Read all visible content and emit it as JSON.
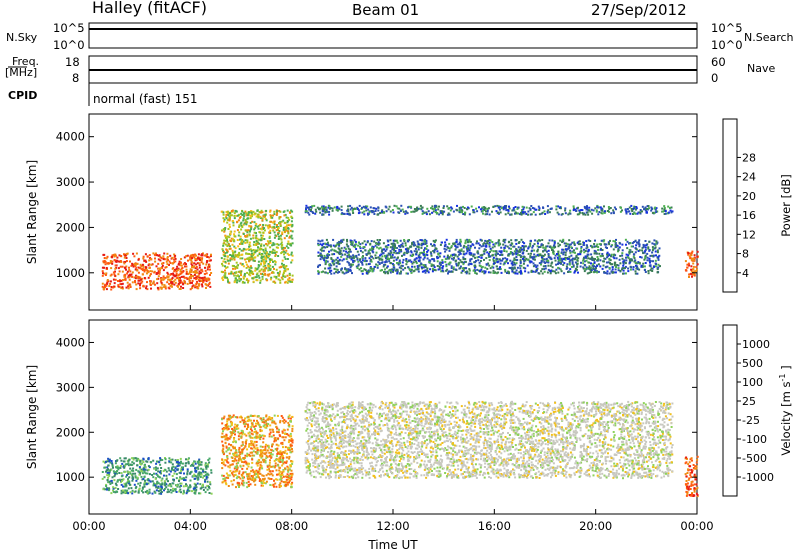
{
  "header": {
    "station": "Halley (fitACF)",
    "beam": "Beam 01",
    "date": "27/Sep/2012"
  },
  "top_panels": {
    "nsky_label": "N.Sky",
    "nsky_ticks": [
      "10^5",
      "10^0"
    ],
    "nsearch_label": "N.Search",
    "nsearch_ticks": [
      "10^5",
      "10^0"
    ],
    "freq_label": "Freq.",
    "freq_unit": "[MHz]",
    "freq_ticks": [
      "18",
      "8"
    ],
    "nave_label": "Nave",
    "nave_ticks": [
      "60",
      "0"
    ],
    "cpid_label": "CPID",
    "cpid_value": "normal (fast) 151"
  },
  "chart_data": [
    {
      "type": "heatmap",
      "title": "",
      "xlabel": "",
      "ylabel": "Slant Range [km]",
      "x_ticks": [
        "00:00",
        "04:00",
        "08:00",
        "12:00",
        "16:00",
        "20:00",
        "00:00"
      ],
      "xlim_hours": [
        0,
        24
      ],
      "y_ticks": [
        1000,
        2000,
        3000,
        4000
      ],
      "ylim_km": [
        180,
        4500
      ],
      "colorbar": {
        "label": "Power [dB]",
        "ticks": [
          4,
          8,
          12,
          16,
          20,
          24,
          28
        ],
        "colors": [
          "#1530e0",
          "#2a50b4",
          "#3a7d55",
          "#4caf50",
          "#a5c51e",
          "#f2c01b",
          "#f08c12",
          "#ff5a10",
          "#e61a14"
        ]
      },
      "echo_regions": [
        {
          "hours": [
            0.5,
            4.8
          ],
          "range_km": [
            650,
            1450
          ],
          "value": "24-30 dB (strong)"
        },
        {
          "hours": [
            5.2,
            8.0
          ],
          "range_km": [
            800,
            2400
          ],
          "value": "12-20 dB"
        },
        {
          "hours": [
            9.0,
            22.5
          ],
          "range_km": [
            1000,
            1750
          ],
          "value": "4-12 dB"
        },
        {
          "hours": [
            8.5,
            23.0
          ],
          "range_km": [
            2300,
            2500
          ],
          "value": "4-8 dB"
        },
        {
          "hours": [
            23.5,
            24.0
          ],
          "range_km": [
            900,
            1500
          ],
          "value": "20-28 dB"
        }
      ]
    },
    {
      "type": "heatmap",
      "title": "",
      "xlabel": "Time UT",
      "ylabel": "Slant Range [km]",
      "x_ticks": [
        "00:00",
        "04:00",
        "08:00",
        "12:00",
        "16:00",
        "20:00",
        "00:00"
      ],
      "xlim_hours": [
        0,
        24
      ],
      "y_ticks": [
        1000,
        2000,
        3000,
        4000
      ],
      "ylim_km": [
        180,
        4500
      ],
      "colorbar": {
        "label": "Velocity [m s",
        "label_superscript": "-1",
        "label_close": "]",
        "ticks": [
          "1000",
          "500",
          "100",
          "25",
          "-25",
          "-100",
          "-500",
          "-1000"
        ],
        "colors": [
          "#1a4ec8",
          "#3a8a6a",
          "#47a868",
          "#8ed25a",
          "#c8c8c0",
          "#f2c01b",
          "#f08c12",
          "#ff5a10",
          "#e61a14"
        ]
      },
      "echo_regions": [
        {
          "hours": [
            0.5,
            4.8
          ],
          "range_km": [
            650,
            1450
          ],
          "value": "100-500 m/s"
        },
        {
          "hours": [
            5.2,
            8.0
          ],
          "range_km": [
            800,
            2400
          ],
          "value": "-100 to -500 m/s"
        },
        {
          "hours": [
            8.5,
            23.0
          ],
          "range_km": [
            1000,
            2700
          ],
          "value": "-25 to 25 m/s (ground scatter)"
        },
        {
          "hours": [
            23.5,
            24.0
          ],
          "range_km": [
            600,
            1500
          ],
          "value": "-500 to -1000 m/s"
        }
      ]
    }
  ]
}
